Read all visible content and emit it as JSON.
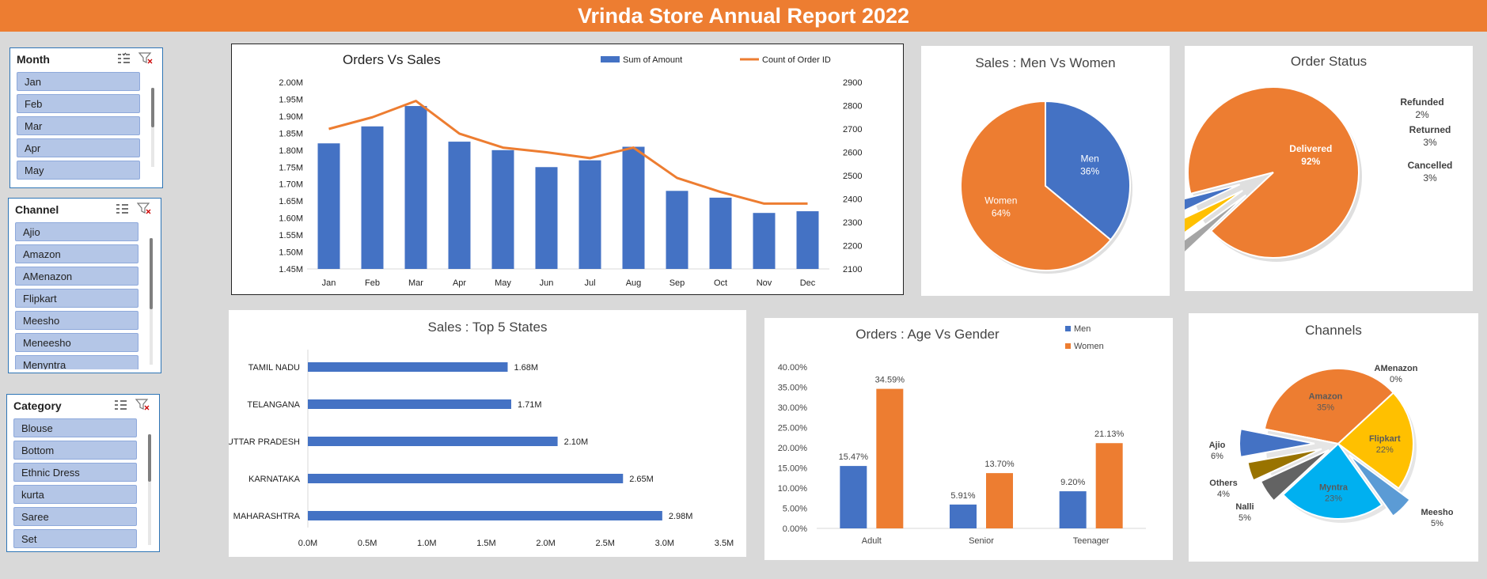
{
  "header": {
    "title": "Vrinda Store Annual Report 2022"
  },
  "slicers": {
    "month": {
      "title": "Month",
      "items": [
        "Jan",
        "Feb",
        "Mar",
        "Apr",
        "May"
      ]
    },
    "channel": {
      "title": "Channel",
      "items": [
        "Ajio",
        "Amazon",
        "AMenazon",
        "Flipkart",
        "Meesho",
        "Meneesho",
        "Menyntra"
      ]
    },
    "category": {
      "title": "Category",
      "items": [
        "Blouse",
        "Bottom",
        "Ethnic Dress",
        "kurta",
        "Saree",
        "Set"
      ]
    },
    "icons": {
      "multiselect": "multi-select-icon",
      "clear": "clear-filter-icon"
    }
  },
  "colors": {
    "blue": "#4472c4",
    "orange": "#ed7d31",
    "yellow": "#ffc000",
    "gray": "#a5a5a5",
    "sky": "#00b0f0",
    "gold": "#997300",
    "darkgray": "#636363",
    "lightblue": "#5b9bd5"
  },
  "chart_data": [
    {
      "type": "bar+line",
      "title": "Orders Vs Sales",
      "categories": [
        "Jan",
        "Feb",
        "Mar",
        "Apr",
        "May",
        "Jun",
        "Jul",
        "Aug",
        "Sep",
        "Oct",
        "Nov",
        "Dec"
      ],
      "series": [
        {
          "name": "Sum of Amount",
          "type": "bar",
          "axis": "left",
          "values": [
            1.82,
            1.87,
            1.93,
            1.825,
            1.8,
            1.75,
            1.77,
            1.81,
            1.68,
            1.66,
            1.615,
            1.62
          ]
        },
        {
          "name": "Count of Order ID",
          "type": "line",
          "axis": "right",
          "values": [
            2700,
            2750,
            2820,
            2680,
            2620,
            2600,
            2575,
            2620,
            2490,
            2430,
            2380,
            2380
          ]
        }
      ],
      "left_ticks": [
        "1.45M",
        "1.50M",
        "1.55M",
        "1.60M",
        "1.65M",
        "1.70M",
        "1.75M",
        "1.80M",
        "1.85M",
        "1.90M",
        "1.95M",
        "2.00M"
      ],
      "right_ticks": [
        "2100",
        "2200",
        "2300",
        "2400",
        "2500",
        "2600",
        "2700",
        "2800",
        "2900"
      ],
      "ylim_left": [
        1.45,
        2.0
      ],
      "ylim_right": [
        2100,
        2900
      ],
      "legend": "top-right"
    },
    {
      "type": "pie",
      "title": "Sales : Men Vs Women",
      "slices": [
        {
          "name": "Men",
          "value": 36,
          "label": "36%"
        },
        {
          "name": "Women",
          "value": 64,
          "label": "64%"
        }
      ]
    },
    {
      "type": "pie",
      "title": "Order Status",
      "slices": [
        {
          "name": "Delivered",
          "value": 92,
          "label": "92%"
        },
        {
          "name": "Refunded",
          "value": 2,
          "label": "2%"
        },
        {
          "name": "Returned",
          "value": 3,
          "label": "3%"
        },
        {
          "name": "Cancelled",
          "value": 3,
          "label": "3%"
        }
      ]
    },
    {
      "type": "bar",
      "orientation": "horizontal",
      "title": "Sales : Top 5 States",
      "categories": [
        "TAMIL NADU",
        "TELANGANA",
        "UTTAR PRADESH",
        "KARNATAKA",
        "MAHARASHTRA"
      ],
      "values": [
        1.68,
        1.71,
        2.1,
        2.65,
        2.98
      ],
      "labels": [
        "1.68M",
        "1.71M",
        "2.10M",
        "2.65M",
        "2.98M"
      ],
      "xticks": [
        "0.0M",
        "0.5M",
        "1.0M",
        "1.5M",
        "2.0M",
        "2.5M",
        "3.0M",
        "3.5M"
      ],
      "xlim": [
        0,
        3.5
      ]
    },
    {
      "type": "bar",
      "title": "Orders : Age Vs Gender",
      "categories": [
        "Adult",
        "Senior",
        "Teenager"
      ],
      "series": [
        {
          "name": "Men",
          "values": [
            15.47,
            5.91,
            9.2
          ],
          "labels": [
            "15.47%",
            "5.91%",
            "9.20%"
          ]
        },
        {
          "name": "Women",
          "values": [
            34.59,
            13.7,
            21.13
          ],
          "labels": [
            "34.59%",
            "13.70%",
            "21.13%"
          ]
        }
      ],
      "yticks": [
        "0.00%",
        "5.00%",
        "10.00%",
        "15.00%",
        "20.00%",
        "25.00%",
        "30.00%",
        "35.00%",
        "40.00%"
      ],
      "ylim": [
        0,
        40
      ],
      "legend": "top-right"
    },
    {
      "type": "pie",
      "title": "Channels",
      "slices": [
        {
          "name": "Amazon",
          "value": 35,
          "label": "35%"
        },
        {
          "name": "Flipkart",
          "value": 22,
          "label": "22%"
        },
        {
          "name": "Meesho",
          "value": 5,
          "label": "5%"
        },
        {
          "name": "Myntra",
          "value": 23,
          "label": "23%"
        },
        {
          "name": "Nalli",
          "value": 5,
          "label": "5%"
        },
        {
          "name": "Others",
          "value": 4,
          "label": "4%"
        },
        {
          "name": "Ajio",
          "value": 6,
          "label": "6%"
        },
        {
          "name": "AMenazon",
          "value": 0,
          "label": "0%"
        }
      ]
    }
  ]
}
